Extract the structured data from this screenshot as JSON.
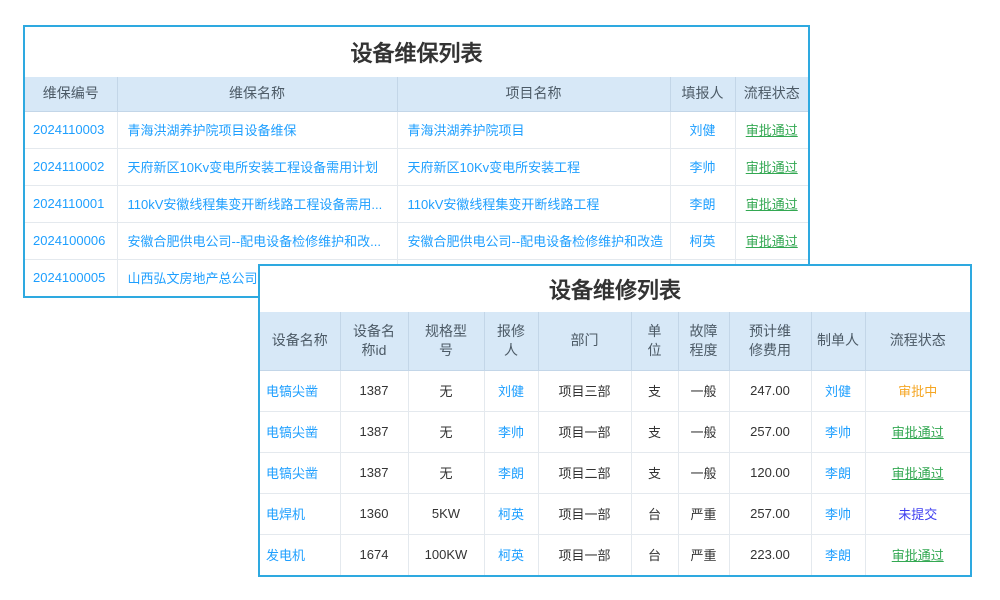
{
  "colors": {
    "panel_border": "#2EA9E0",
    "header_bg": "#d7e8f7",
    "link_blue": "#1E9FFF",
    "approved_green": "#33A852",
    "pending_orange": "#F5A623",
    "draft_blue_violet": "#3E3EF0"
  },
  "maintenance": {
    "title": "设备维保列表",
    "columns": [
      "维保编号",
      "维保名称",
      "项目名称",
      "填报人",
      "流程状态"
    ],
    "rows": [
      {
        "id": "2024110003",
        "name": "青海洪湖养护院项目设备维保",
        "project": "青海洪湖养护院项目",
        "reporter": "刘健",
        "status": "审批通过",
        "statusType": "approved"
      },
      {
        "id": "2024110002",
        "name": "天府新区10Kv变电所安装工程设备需用计划",
        "project": "天府新区10Kv变电所安装工程",
        "reporter": "李帅",
        "status": "审批通过",
        "statusType": "approved"
      },
      {
        "id": "2024110001",
        "name": "110kV安徽线程集变开断线路工程设备需用...",
        "project": "110kV安徽线程集变开断线路工程",
        "reporter": "李朗",
        "status": "审批通过",
        "statusType": "approved"
      },
      {
        "id": "2024100006",
        "name": "安徽合肥供电公司--配电设备检修维护和改...",
        "project": "安徽合肥供电公司--配电设备检修维护和改造",
        "reporter": "柯英",
        "status": "审批通过",
        "statusType": "approved"
      },
      {
        "id": "2024100005",
        "name": "山西弘文房地产总公司电",
        "project": "",
        "reporter": "",
        "status": "",
        "statusType": ""
      }
    ]
  },
  "repair": {
    "title": "设备维修列表",
    "columns": [
      "设备名称",
      "设备名\n称id",
      "规格型\n号",
      "报修\n人",
      "部门",
      "单\n位",
      "故障\n程度",
      "预计维\n修费用",
      "制单人",
      "流程状态"
    ],
    "rows": [
      {
        "name": "电镐尖凿",
        "deviceId": "1387",
        "spec": "无",
        "reporter": "刘健",
        "dept": "项目三部",
        "unit": "支",
        "severity": "一般",
        "cost": "247.00",
        "creator": "刘健",
        "status": "审批中",
        "statusType": "pending"
      },
      {
        "name": "电镐尖凿",
        "deviceId": "1387",
        "spec": "无",
        "reporter": "李帅",
        "dept": "项目一部",
        "unit": "支",
        "severity": "一般",
        "cost": "257.00",
        "creator": "李帅",
        "status": "审批通过",
        "statusType": "approved"
      },
      {
        "name": "电镐尖凿",
        "deviceId": "1387",
        "spec": "无",
        "reporter": "李朗",
        "dept": "项目二部",
        "unit": "支",
        "severity": "一般",
        "cost": "120.00",
        "creator": "李朗",
        "status": "审批通过",
        "statusType": "approved"
      },
      {
        "name": "电焊机",
        "deviceId": "1360",
        "spec": "5KW",
        "reporter": "柯英",
        "dept": "项目一部",
        "unit": "台",
        "severity": "严重",
        "cost": "257.00",
        "creator": "李帅",
        "status": "未提交",
        "statusType": "draft"
      },
      {
        "name": "发电机",
        "deviceId": "1674",
        "spec": "100KW",
        "reporter": "柯英",
        "dept": "项目一部",
        "unit": "台",
        "severity": "严重",
        "cost": "223.00",
        "creator": "李朗",
        "status": "审批通过",
        "statusType": "approved"
      }
    ]
  }
}
